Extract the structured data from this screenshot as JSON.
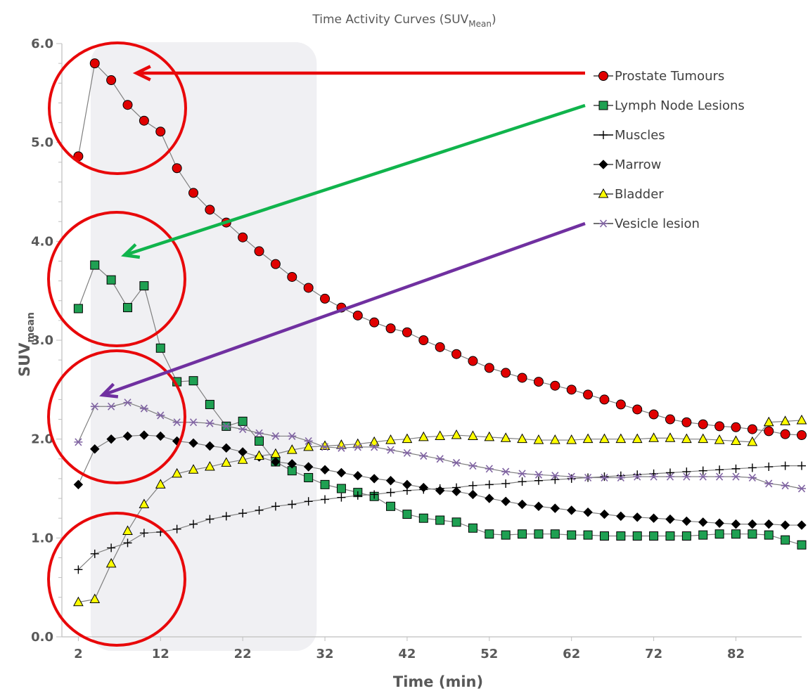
{
  "chart_data": {
    "type": "line",
    "title": "Time Activity Curves (SUV",
    "title_sub": "Mean",
    "title_close": ")",
    "xlabel": "Time (min)",
    "ylabel": "SUV",
    "ylabel_sub": "mean",
    "xlim": [
      0,
      90
    ],
    "ylim": [
      0,
      6
    ],
    "x_ticks": [
      2,
      12,
      22,
      32,
      42,
      52,
      62,
      72,
      82
    ],
    "y_ticks": [
      "0.0",
      "1.0",
      "2.0",
      "3.0",
      "4.0",
      "5.0",
      "6.0"
    ],
    "grid": false,
    "legend_position": "right",
    "shaded_region_x": [
      3.5,
      31
    ],
    "x": [
      2,
      4,
      6,
      8,
      10,
      12,
      14,
      16,
      18,
      20,
      22,
      24,
      26,
      28,
      30,
      32,
      34,
      36,
      38,
      40,
      42,
      44,
      46,
      48,
      50,
      52,
      54,
      56,
      58,
      60,
      62,
      64,
      66,
      68,
      70,
      72,
      74,
      76,
      78,
      80,
      82,
      84,
      86,
      88,
      90
    ],
    "series": [
      {
        "name": "Prostate Tumours",
        "marker": "circle",
        "fill": "#e00000",
        "values": [
          4.86,
          5.8,
          5.63,
          5.38,
          5.22,
          5.11,
          4.74,
          4.49,
          4.32,
          4.19,
          4.04,
          3.9,
          3.77,
          3.64,
          3.53,
          3.42,
          3.33,
          3.25,
          3.18,
          3.12,
          3.08,
          3.0,
          2.93,
          2.86,
          2.79,
          2.72,
          2.67,
          2.62,
          2.58,
          2.54,
          2.5,
          2.45,
          2.4,
          2.35,
          2.3,
          2.25,
          2.2,
          2.17,
          2.15,
          2.13,
          2.12,
          2.1,
          2.08,
          2.05,
          2.04
        ]
      },
      {
        "name": "Lymph Node Lesions",
        "marker": "square",
        "fill": "#1fa052",
        "values": [
          3.32,
          3.76,
          3.61,
          3.33,
          3.55,
          2.92,
          2.58,
          2.59,
          2.35,
          2.13,
          2.18,
          1.98,
          1.77,
          1.68,
          1.61,
          1.54,
          1.5,
          1.46,
          1.42,
          1.32,
          1.24,
          1.2,
          1.18,
          1.16,
          1.1,
          1.04,
          1.03,
          1.04,
          1.04,
          1.04,
          1.03,
          1.03,
          1.02,
          1.02,
          1.02,
          1.02,
          1.02,
          1.02,
          1.03,
          1.04,
          1.04,
          1.04,
          1.03,
          0.98,
          0.93
        ]
      },
      {
        "name": "Muscles",
        "marker": "plus",
        "fill": "#000000",
        "values": [
          0.68,
          0.84,
          0.9,
          0.95,
          1.05,
          1.06,
          1.09,
          1.14,
          1.19,
          1.22,
          1.25,
          1.28,
          1.32,
          1.34,
          1.37,
          1.39,
          1.41,
          1.43,
          1.44,
          1.46,
          1.48,
          1.49,
          1.5,
          1.51,
          1.53,
          1.54,
          1.55,
          1.57,
          1.58,
          1.59,
          1.6,
          1.61,
          1.62,
          1.63,
          1.64,
          1.65,
          1.66,
          1.67,
          1.68,
          1.69,
          1.7,
          1.71,
          1.72,
          1.73,
          1.73
        ]
      },
      {
        "name": "Marrow",
        "marker": "diamond",
        "fill": "#000000",
        "values": [
          1.54,
          1.9,
          2.0,
          2.03,
          2.04,
          2.03,
          1.98,
          1.96,
          1.93,
          1.91,
          1.87,
          1.82,
          1.77,
          1.75,
          1.72,
          1.69,
          1.66,
          1.63,
          1.6,
          1.58,
          1.54,
          1.51,
          1.48,
          1.47,
          1.44,
          1.4,
          1.37,
          1.34,
          1.32,
          1.3,
          1.28,
          1.26,
          1.24,
          1.22,
          1.21,
          1.2,
          1.19,
          1.17,
          1.16,
          1.15,
          1.14,
          1.14,
          1.14,
          1.13,
          1.13
        ]
      },
      {
        "name": "Bladder",
        "marker": "triangle",
        "fill": "#ffff00",
        "values": [
          0.35,
          0.38,
          0.74,
          1.07,
          1.34,
          1.54,
          1.65,
          1.69,
          1.72,
          1.76,
          1.79,
          1.83,
          1.85,
          1.89,
          1.92,
          1.93,
          1.94,
          1.95,
          1.97,
          1.99,
          2.0,
          2.02,
          2.03,
          2.04,
          2.03,
          2.02,
          2.01,
          2.0,
          1.99,
          1.99,
          1.99,
          2.0,
          2.0,
          2.0,
          2.0,
          2.01,
          2.01,
          2.0,
          2.0,
          1.99,
          1.98,
          1.97,
          2.17,
          2.18,
          2.19
        ]
      },
      {
        "name": "Vesicle lesion",
        "marker": "asterisk",
        "fill": "#8064a2",
        "values": [
          1.97,
          2.33,
          2.33,
          2.37,
          2.31,
          2.24,
          2.17,
          2.17,
          2.16,
          2.13,
          2.1,
          2.06,
          2.03,
          2.03,
          1.98,
          1.92,
          1.91,
          1.92,
          1.92,
          1.89,
          1.86,
          1.83,
          1.8,
          1.76,
          1.73,
          1.7,
          1.67,
          1.65,
          1.64,
          1.63,
          1.62,
          1.61,
          1.61,
          1.61,
          1.62,
          1.62,
          1.62,
          1.62,
          1.62,
          1.62,
          1.62,
          1.61,
          1.55,
          1.53,
          1.5
        ]
      }
    ],
    "annotations": {
      "circle_color": "#e8080a",
      "arrows": [
        {
          "series": "Prostate Tumours",
          "color": "#e8080a"
        },
        {
          "series": "Lymph Node Lesions",
          "color": "#10b44c"
        },
        {
          "series": "Vesicle lesion",
          "color": "#7030a0"
        }
      ]
    }
  }
}
